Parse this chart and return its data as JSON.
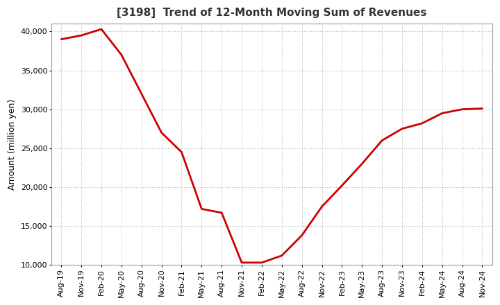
{
  "title": "[3198]  Trend of 12-Month Moving Sum of Revenues",
  "ylabel": "Amount (million yen)",
  "line_color": "#cc0000",
  "background_color": "#ffffff",
  "plot_bg_color": "#ffffff",
  "grid_color": "#aaaaaa",
  "ylim": [
    10000,
    41000
  ],
  "yticks": [
    10000,
    15000,
    20000,
    25000,
    30000,
    35000,
    40000
  ],
  "x_labels": [
    "Aug-19",
    "Nov-19",
    "Feb-20",
    "May-20",
    "Aug-20",
    "Nov-20",
    "Feb-21",
    "May-21",
    "Aug-21",
    "Nov-21",
    "Feb-22",
    "May-22",
    "Aug-22",
    "Nov-22",
    "Feb-23",
    "May-23",
    "Aug-23",
    "Nov-23",
    "Feb-24",
    "May-24",
    "Aug-24",
    "Nov-24"
  ],
  "y_values": [
    39000,
    39500,
    40300,
    37000,
    32000,
    27000,
    24500,
    17200,
    16700,
    10300,
    10300,
    11200,
    13800,
    17500,
    20200,
    23000,
    26000,
    27500,
    28200,
    29500,
    30000,
    30100
  ],
  "title_fontsize": 11,
  "ylabel_fontsize": 9,
  "tick_fontsize": 8,
  "linewidth": 2.0
}
